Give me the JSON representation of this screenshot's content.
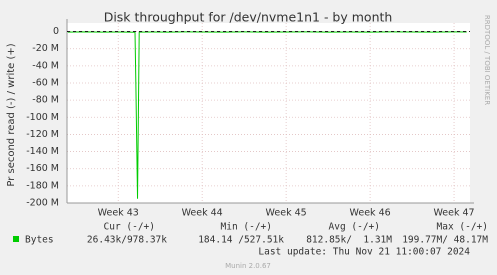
{
  "chart_data": {
    "type": "line",
    "title": "Disk throughput for /dev/nvme1n1 - by month",
    "y_label": "Pr second read (-) / write (+)",
    "side_text": "RRDTOOL / TOBI OETIKER",
    "x": [
      42.4,
      42.6,
      42.8,
      43.0,
      43.1,
      43.2,
      43.21,
      43.23,
      43.25,
      43.4,
      43.6,
      43.8,
      44.0,
      44.25,
      44.5,
      44.75,
      45.0,
      45.25,
      45.5,
      45.75,
      46.0,
      46.25,
      46.5,
      46.75,
      47.0,
      47.15
    ],
    "series": [
      {
        "name": "Bytes",
        "color": "#00cc00",
        "values": [
          -600000,
          -400000,
          -700000,
          -500000,
          -600000,
          -800000,
          -60000000,
          -195000000,
          -700000,
          -500000,
          -600000,
          -400000,
          -500000,
          -700000,
          -400000,
          -600000,
          -500000,
          -400000,
          -600000,
          -500000,
          -700000,
          -400000,
          -500000,
          -600000,
          -400000,
          -500000
        ]
      }
    ],
    "xlim": [
      42.39,
      47.19
    ],
    "xticks": [
      {
        "value": 43,
        "label": "Week 43"
      },
      {
        "value": 44,
        "label": "Week 44"
      },
      {
        "value": 45,
        "label": "Week 45"
      },
      {
        "value": 46,
        "label": "Week 46"
      },
      {
        "value": 47,
        "label": "Week 47"
      }
    ],
    "ylim": [
      -200000000,
      10000000
    ],
    "yticks": [
      {
        "value": 0,
        "label": "0"
      },
      {
        "value": -20000000,
        "label": "-20 M"
      },
      {
        "value": -40000000,
        "label": "-40 M"
      },
      {
        "value": -60000000,
        "label": "-60 M"
      },
      {
        "value": -80000000,
        "label": "-80 M"
      },
      {
        "value": -100000000,
        "label": "-100 M"
      },
      {
        "value": -120000000,
        "label": "-120 M"
      },
      {
        "value": -140000000,
        "label": "-140 M"
      },
      {
        "value": -160000000,
        "label": "-160 M"
      },
      {
        "value": -180000000,
        "label": "-180 M"
      },
      {
        "value": -200000000,
        "label": "-200 M"
      }
    ],
    "grid": true,
    "legend_table": {
      "headers": [
        "Cur (-/+)",
        "Min (-/+)",
        "Avg (-/+)",
        "Max (-/+)"
      ],
      "row": [
        "26.43k/978.37k",
        "184.14 /527.51k",
        "812.85k/  1.31M",
        "199.77M/ 48.17M"
      ]
    },
    "last_update": "Last update: Thu Nov 21 11:00:07 2024",
    "footer": "Munin 2.0.67"
  }
}
